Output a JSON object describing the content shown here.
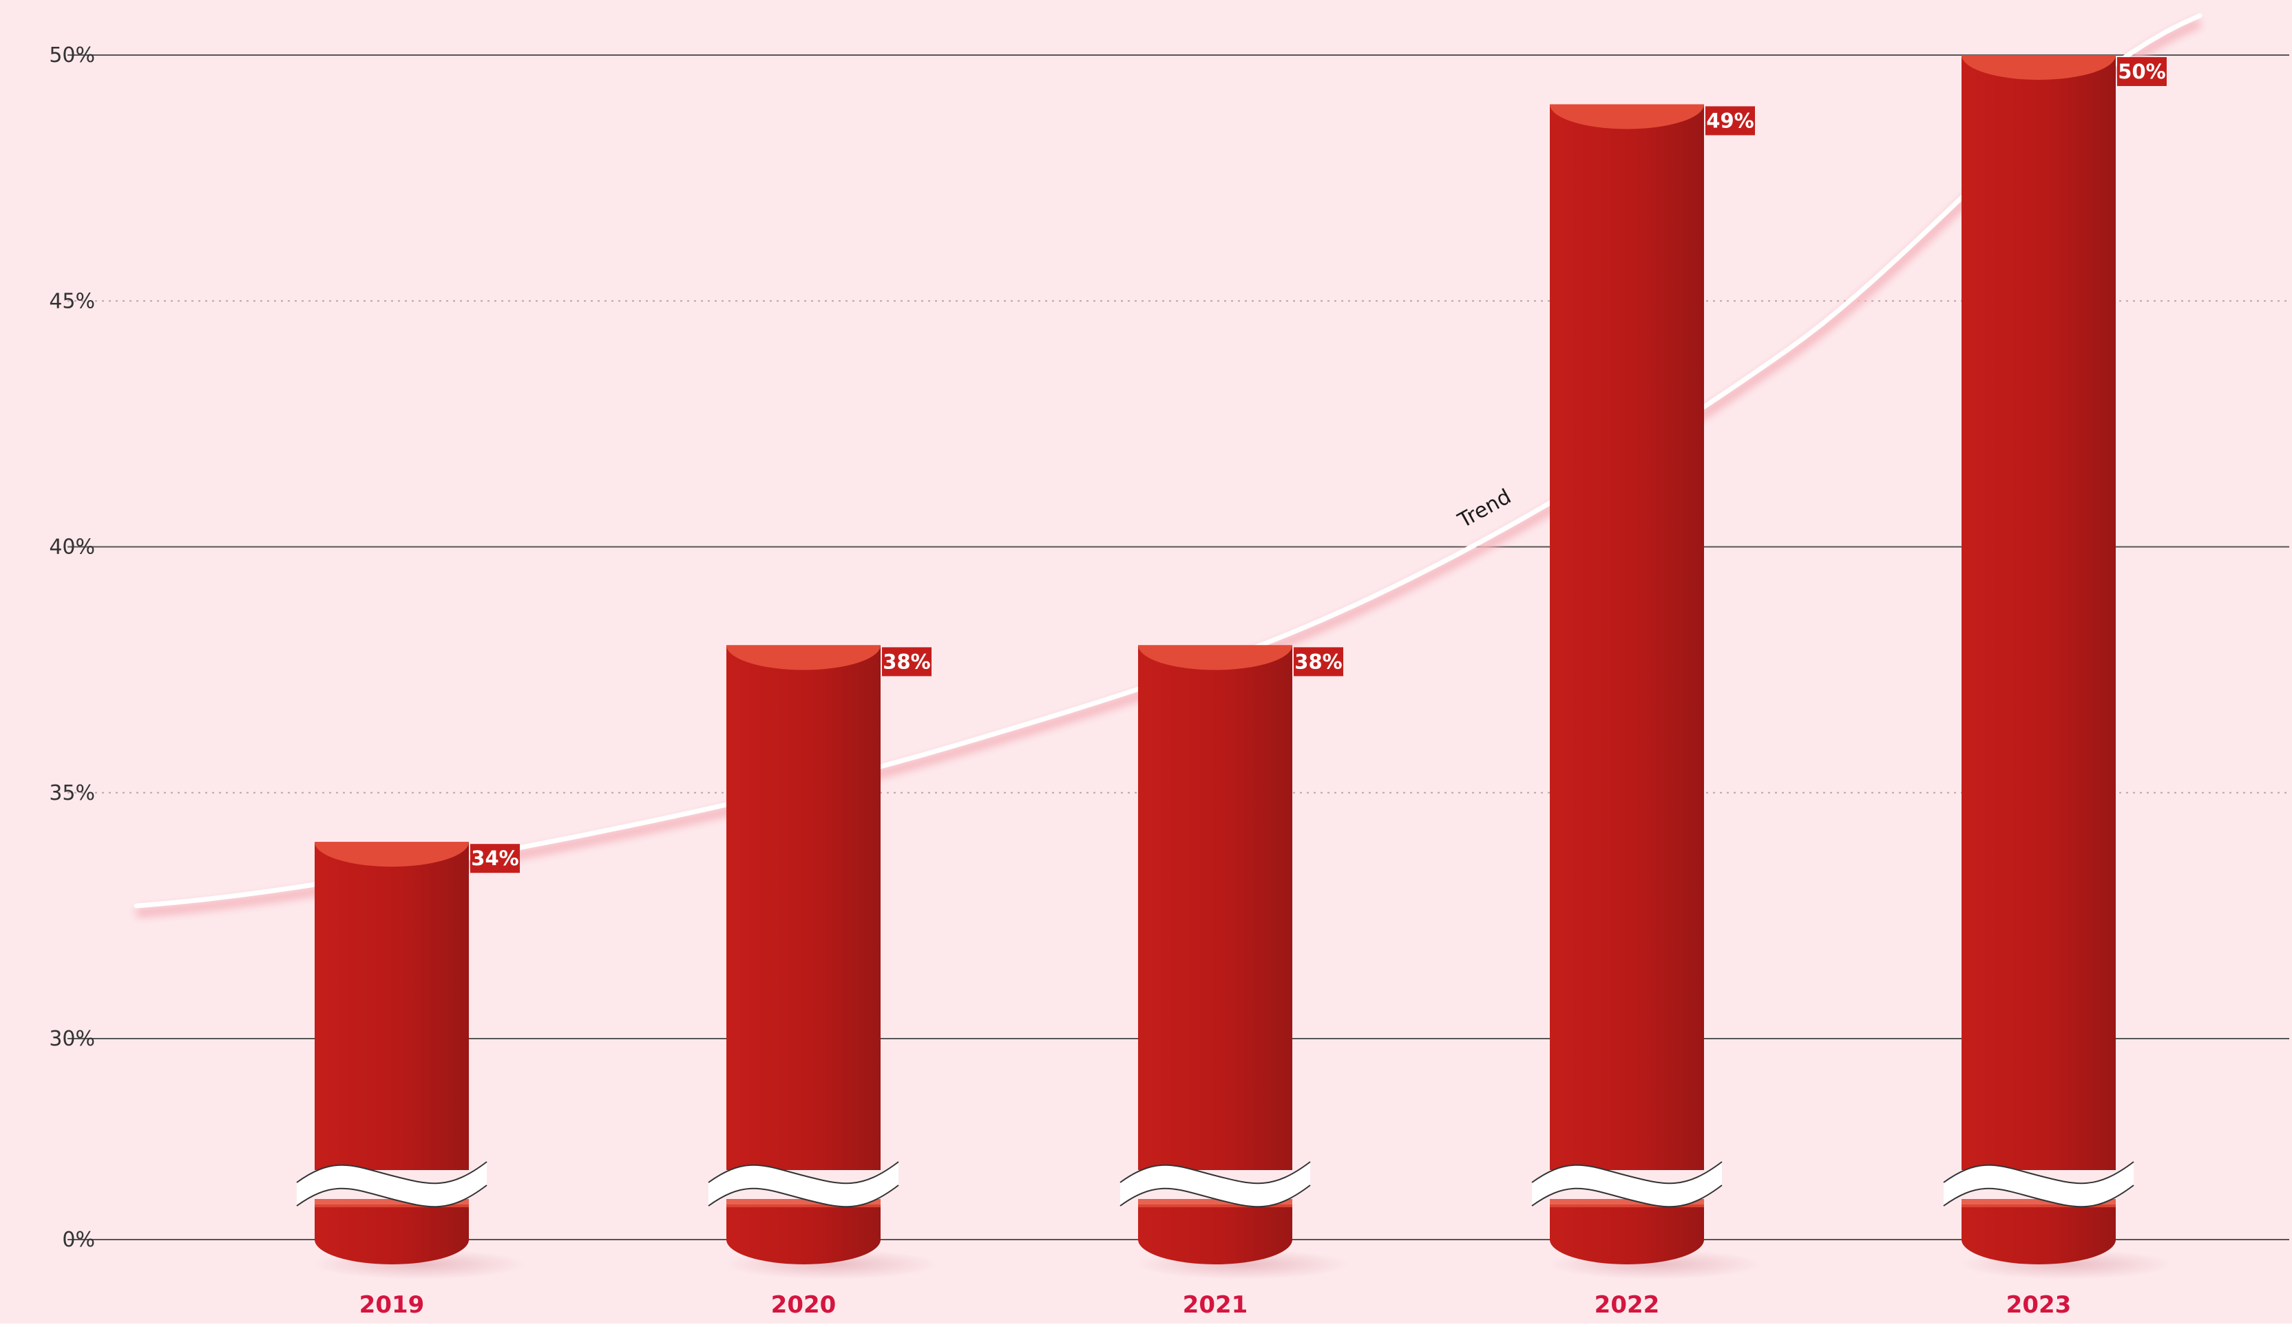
{
  "chart_data": {
    "type": "bar",
    "title": "",
    "xlabel": "",
    "ylabel": "",
    "categories": [
      "2019",
      "2020",
      "2021",
      "2022",
      "2023"
    ],
    "values": [
      34,
      38,
      38,
      49,
      50
    ],
    "data_labels": [
      "34%",
      "38%",
      "38%",
      "49%",
      "50%"
    ],
    "y_ticks": [
      {
        "label": "0%",
        "value": 0
      },
      {
        "label": "30%",
        "value": 30
      },
      {
        "label": "35%",
        "value": 35
      },
      {
        "label": "40%",
        "value": 40
      },
      {
        "label": "45%",
        "value": 45
      },
      {
        "label": "50%",
        "value": 50
      }
    ],
    "ylim": [
      0,
      50
    ],
    "axis_break": {
      "from": 0,
      "to": 30
    },
    "trend_label": "Trend",
    "trend": {
      "x_range": [
        "2018.4",
        "2023.4"
      ],
      "values": [
        32.7,
        34.0,
        36.0,
        39.0,
        44.0,
        50.8
      ]
    },
    "grid": true,
    "colors": {
      "background": "#FDE9EC",
      "bar": "#B81A18",
      "bar_dark": "#9A1715",
      "bar_top": "#E24B37",
      "label_bg": "#C41E1C",
      "label_text": "#FFFFFF",
      "category_text": "#D4153F",
      "tick_text": "#333333",
      "grid_major": "#555555",
      "grid_minor": "#B9A6A9",
      "trend": "#FFFFFF",
      "trend_glow": "#F5B8C0",
      "trend_text": "#1A1A1A"
    }
  }
}
